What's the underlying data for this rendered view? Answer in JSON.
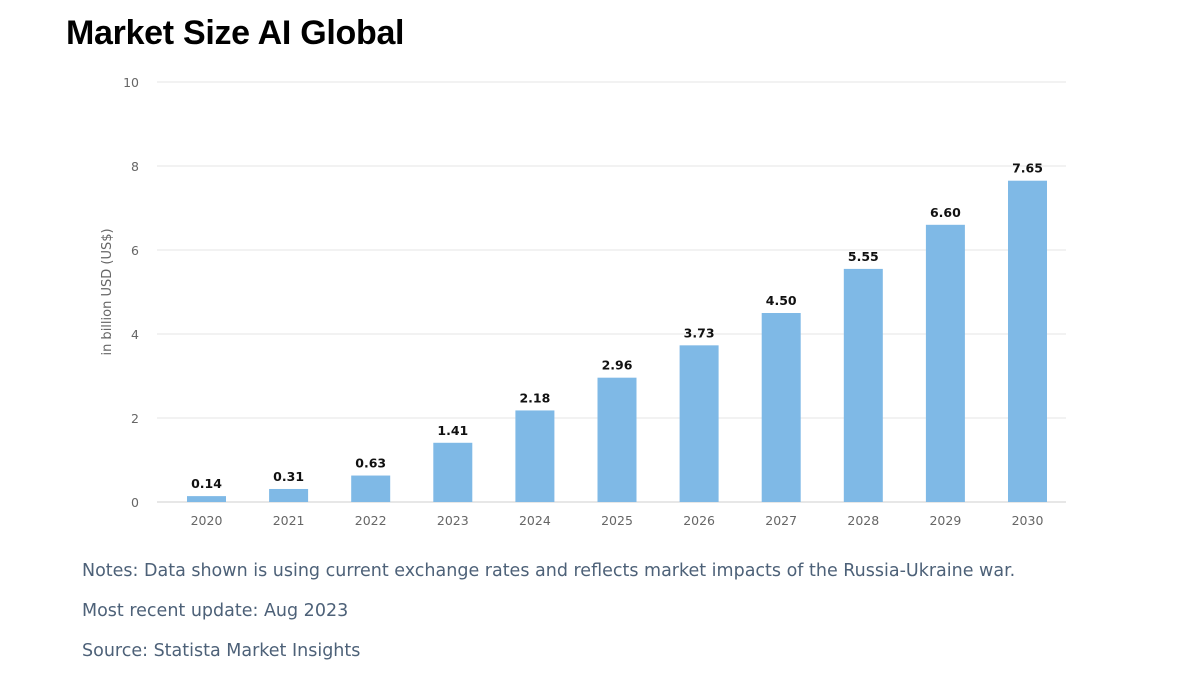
{
  "title": "Market Size AI Global",
  "colors": {
    "bar": "#7fb9e6",
    "grid": "#e6e6e6",
    "axis_text": "#666666",
    "label_text": "#111111",
    "note_text": "#4d6178"
  },
  "chart_data": {
    "type": "bar",
    "title": "Market Size AI Global",
    "categories": [
      "2020",
      "2021",
      "2022",
      "2023",
      "2024",
      "2025",
      "2026",
      "2027",
      "2028",
      "2029",
      "2030"
    ],
    "values": [
      0.14,
      0.31,
      0.63,
      1.41,
      2.18,
      2.96,
      3.73,
      4.5,
      5.55,
      6.6,
      7.65
    ],
    "value_labels": [
      "0.14",
      "0.31",
      "0.63",
      "1.41",
      "2.18",
      "2.96",
      "3.73",
      "4.50",
      "5.55",
      "6.60",
      "7.65"
    ],
    "ylabel": "in billion USD (US$)",
    "xlabel": "",
    "ylim": [
      0,
      10
    ],
    "yticks": [
      0,
      2,
      4,
      6,
      8,
      10
    ],
    "grid": true,
    "legend": "none"
  },
  "notes": {
    "notes_line": "Notes: Data shown is using current exchange rates and reflects market impacts of the Russia-Ukraine war.",
    "update_line": "Most recent update: Aug 2023",
    "source_line": "Source: Statista Market Insights"
  }
}
